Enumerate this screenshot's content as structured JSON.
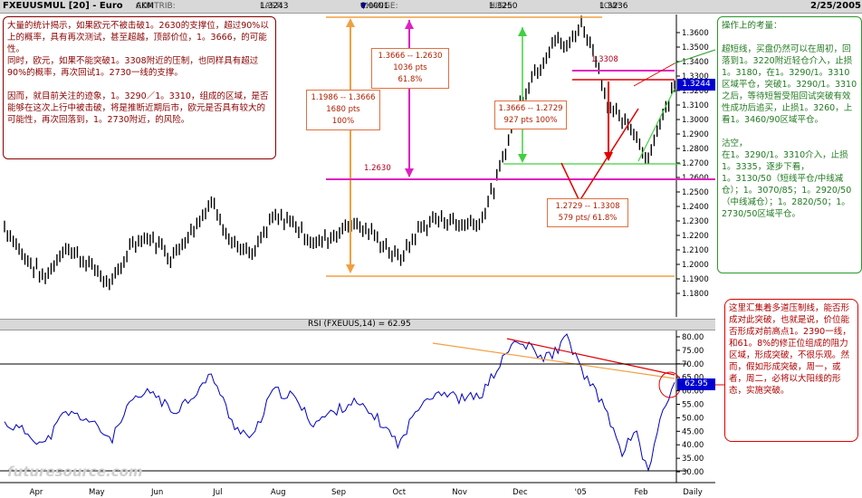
{
  "header": {
    "symbol": "FXEUUSMUL [20] - Euro",
    "contrib_label": "CONTRIB:",
    "contrib": "AKM",
    "last_label": "LAST:",
    "last": "1.3243",
    "change_label": "CHANGE:",
    "change": "0.0001",
    "high_label": "HIGH:",
    "high": "1.3250",
    "low_label": "LOW:",
    "low": "1.3236",
    "date": "2/25/2005"
  },
  "rsi_header": "RSI (FXEUUS,14) = 62.95",
  "annotations": {
    "top_left": "大量的统计揭示，如果欧元不被击破1。2630的支撑位，超过90%以上的概率，具有再次测试，甚至超越，顶部价位，1。3666，的可能性。\n同时，欧元，如果不能突破1。3308附近的压制，也同样具有超过90%的概率，再次回试1。2730一线的支撑。\n\n因而，就目前关注的迹象，1。3290／1。3310，组成的区域，是否能够在这次上行中被击破，将是推断近期后市，欧元是否具有较大的可能性，再次回落到，1。2730附近，的风险。",
    "right_green": "操作上的考量：\n\n超短线，买盘仍然可以在周初，回落到1。3220附近轻仓介入，止损1。3180，在1。3290/1。3310区域平仓，突破1。3290/1。3310之后，等待短暂受阻回试突破有效性成功后追买，止损1。3260，上看1。3460/90区域平仓。\n\n沽空，\n在1。3290/1。3310介入，止损1。3335，逐步下看，\n1。3130/50（短线平仓/中线减仓）；1。3070/85；1。2920/50（中线减仓）；1。2820/50；1。2730/50区域平仓。",
    "right_red": "这里汇集着多道压制线，能否形成对此突破，也就是说，价位能否形成对前高点1。2390一线，和61。8%的修正位组成的阻力区域，形成突破，不很乐观。然而，假如形成突破，周一，或者，周二，必将以大阳线的形态，实施突破。"
  },
  "measurements": {
    "m1": "1.1986 -- 1.3666\n1680 pts\n100%",
    "m2": "1.3666 -- 1.2630\n1036 pts\n61.8%",
    "m3": "1.3666 -- 1.2729\n927 pts  100%",
    "m4": "1.2729 -- 1.3308\n579 pts/ 61.8%",
    "lbl_1308": "1.3308",
    "lbl_2630": "1.2630"
  },
  "price_badge": "1.3244",
  "rsi_badge": "62.95",
  "logo": "futuresource.com",
  "colors": {
    "price_line": "#000000",
    "rsi_line": "#0000c0",
    "magenta": "#e020c0",
    "orange": "#f0a040",
    "green": "#40d040",
    "red": "#e00000",
    "badge": "#0000d0"
  },
  "chart_data": [
    {
      "type": "line",
      "subtype": "ohlc-bar",
      "title": "FXEUUSMUL [20] - Euro",
      "x_ticks": [
        "Apr",
        "May",
        "Jun",
        "Jul",
        "Aug",
        "Sep",
        "Oct",
        "Nov",
        "Dec",
        "'05",
        "Feb",
        "Daily"
      ],
      "ylim": [
        1.17,
        1.37
      ],
      "y_ticks": [
        "1.3600",
        "1.3500",
        "1.3400",
        "1.3300",
        "1.3200",
        "1.3100",
        "1.3000",
        "1.2900",
        "1.2800",
        "1.2700",
        "1.2600",
        "1.2500",
        "1.2400",
        "1.2300",
        "1.2200",
        "1.2100",
        "1.2000",
        "1.1900",
        "1.1800"
      ],
      "x": [
        0,
        0.03,
        0.06,
        0.09,
        0.12,
        0.16,
        0.19,
        0.22,
        0.25,
        0.28,
        0.31,
        0.34,
        0.37,
        0.4,
        0.43,
        0.46,
        0.49,
        0.52,
        0.555,
        0.59,
        0.62,
        0.65,
        0.68,
        0.71,
        0.735,
        0.76,
        0.785,
        0.8,
        0.82,
        0.84,
        0.86,
        0.88,
        0.9,
        0.92,
        0.94,
        0.96,
        0.98,
        1.0
      ],
      "values": [
        1.226,
        1.205,
        1.19,
        1.212,
        1.203,
        1.185,
        1.215,
        1.218,
        1.205,
        1.225,
        1.243,
        1.215,
        1.205,
        1.232,
        1.23,
        1.214,
        1.22,
        1.23,
        1.218,
        1.203,
        1.225,
        1.232,
        1.228,
        1.23,
        1.258,
        1.3,
        1.328,
        1.338,
        1.355,
        1.35,
        1.366,
        1.348,
        1.31,
        1.3,
        1.29,
        1.273,
        1.3,
        1.324
      ]
    },
    {
      "type": "line",
      "title": "RSI (FXEUUS,14) = 62.95",
      "ylim": [
        27,
        82
      ],
      "y_ticks": [
        "80.00",
        "75.00",
        "70.00",
        "65.00",
        "60.00",
        "55.00",
        "50.00",
        "45.00",
        "40.00",
        "35.00",
        "30.00"
      ],
      "x": [
        0,
        0.03,
        0.06,
        0.09,
        0.12,
        0.16,
        0.19,
        0.22,
        0.25,
        0.28,
        0.31,
        0.34,
        0.37,
        0.4,
        0.43,
        0.46,
        0.49,
        0.52,
        0.555,
        0.59,
        0.62,
        0.65,
        0.68,
        0.71,
        0.735,
        0.76,
        0.785,
        0.8,
        0.82,
        0.84,
        0.86,
        0.88,
        0.9,
        0.92,
        0.94,
        0.96,
        0.98,
        1.0
      ],
      "values": [
        48,
        45,
        40,
        52,
        50,
        42,
        56,
        60,
        52,
        58,
        66,
        48,
        42,
        60,
        58,
        48,
        52,
        56,
        50,
        40,
        56,
        60,
        57,
        58,
        68,
        78,
        76,
        72,
        74,
        80,
        68,
        60,
        52,
        36,
        46,
        30,
        50,
        63
      ]
    }
  ]
}
